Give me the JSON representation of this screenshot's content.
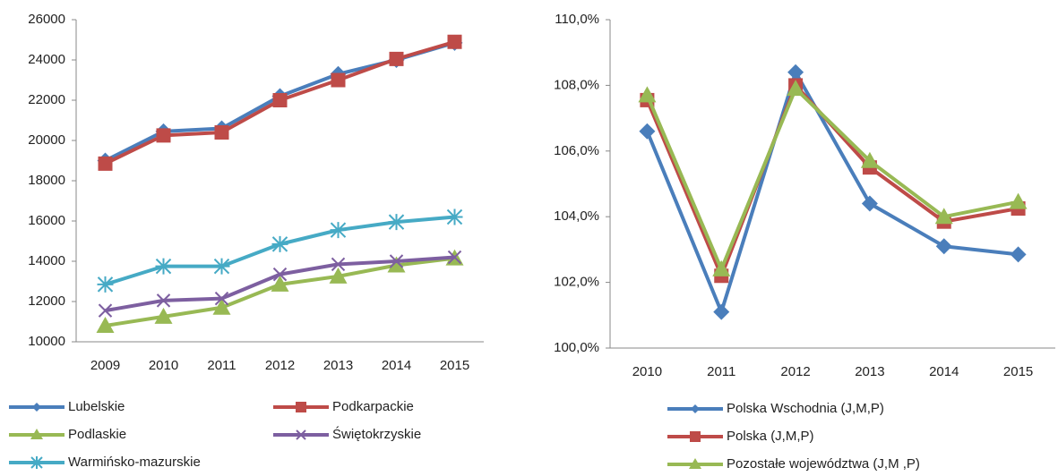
{
  "chart_data": [
    {
      "type": "line",
      "categories": [
        "2009",
        "2010",
        "2011",
        "2012",
        "2013",
        "2014",
        "2015"
      ],
      "ylim": [
        10000,
        26000
      ],
      "yticks": [
        10000,
        12000,
        14000,
        16000,
        18000,
        20000,
        22000,
        24000,
        26000
      ],
      "grid": false,
      "series": [
        {
          "name": "Lubelskie",
          "color": "#4a7ebb",
          "marker": "diamond",
          "values": [
            19000,
            20450,
            20600,
            22200,
            23300,
            24000,
            24850
          ]
        },
        {
          "name": "Podkarpackie",
          "color": "#be4b48",
          "marker": "square",
          "values": [
            18850,
            20250,
            20400,
            22000,
            23000,
            24050,
            24900
          ]
        },
        {
          "name": "Podlaskie",
          "color": "#98b954",
          "marker": "triangle",
          "values": [
            10800,
            11250,
            11700,
            12850,
            13250,
            13800,
            14150
          ]
        },
        {
          "name": "Świętokrzyskie",
          "color": "#7d5fa0",
          "marker": "x",
          "values": [
            11550,
            12050,
            12150,
            13350,
            13850,
            14000,
            14200
          ]
        },
        {
          "name": "Warmińsko-mazurskie",
          "color": "#46aac5",
          "marker": "star",
          "values": [
            12850,
            13750,
            13750,
            14850,
            15550,
            15950,
            16200
          ]
        }
      ]
    },
    {
      "type": "line",
      "categories": [
        "2010",
        "2011",
        "2012",
        "2013",
        "2014",
        "2015"
      ],
      "ylim": [
        100,
        110
      ],
      "yticks": [
        {
          "value": 100,
          "label": "100,0%"
        },
        {
          "value": 102,
          "label": "102,0%"
        },
        {
          "value": 104,
          "label": "104,0%"
        },
        {
          "value": 106,
          "label": "106,0%"
        },
        {
          "value": 108,
          "label": "108,0%"
        },
        {
          "value": 110,
          "label": "110,0%"
        }
      ],
      "grid": false,
      "series": [
        {
          "name": "Polska Wschodnia (J,M,P)",
          "color": "#4a7ebb",
          "marker": "diamond",
          "values": [
            106.6,
            101.1,
            108.4,
            104.4,
            103.1,
            102.85
          ]
        },
        {
          "name": "Polska (J,M,P)",
          "color": "#be4b48",
          "marker": "square",
          "values": [
            107.55,
            102.2,
            108.0,
            105.5,
            103.85,
            104.25
          ]
        },
        {
          "name": "Pozostałe województwa (J,M ,P)",
          "color": "#98b954",
          "marker": "triangle",
          "values": [
            107.7,
            102.4,
            107.9,
            105.7,
            104.0,
            104.45
          ]
        }
      ]
    }
  ]
}
